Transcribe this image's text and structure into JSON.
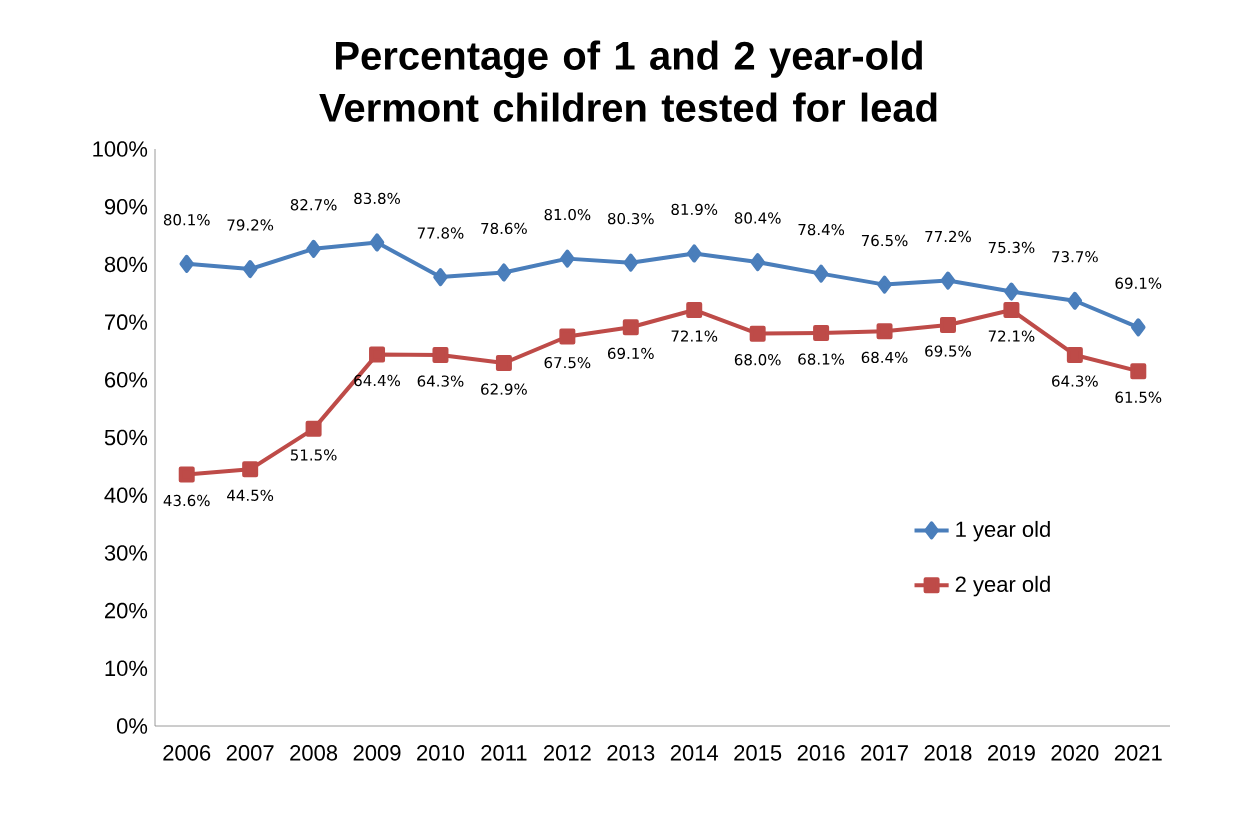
{
  "chart_data": {
    "type": "line",
    "title": "Percentage of 1 and 2 year-old Vermont children tested for lead",
    "categories": [
      "2006",
      "2007",
      "2008",
      "2009",
      "2010",
      "2011",
      "2012",
      "2013",
      "2014",
      "2015",
      "2016",
      "2017",
      "2018",
      "2019",
      "2020",
      "2021"
    ],
    "series": [
      {
        "name": "1 year old",
        "color": "#4a7ebb",
        "marker": "diamond",
        "values": [
          80.1,
          79.2,
          82.7,
          83.8,
          77.8,
          78.6,
          81.0,
          80.3,
          81.9,
          80.4,
          78.4,
          76.5,
          77.2,
          75.3,
          73.7,
          69.1
        ],
        "value_labels": [
          "80.1%",
          "79.2%",
          "82.7%",
          "83.8%",
          "77.8%",
          "78.6%",
          "81.0%",
          "80.3%",
          "81.9%",
          "80.4%",
          "78.4%",
          "76.5%",
          "77.2%",
          "75.3%",
          "73.7%",
          "69.1%"
        ]
      },
      {
        "name": "2 year old",
        "color": "#be4b48",
        "marker": "square",
        "values": [
          43.6,
          44.5,
          51.5,
          64.4,
          64.3,
          62.9,
          67.5,
          69.1,
          72.1,
          68.0,
          68.1,
          68.4,
          69.5,
          72.1,
          64.3,
          61.5
        ],
        "value_labels": [
          "43.6%",
          "44.5%",
          "51.5%",
          "64.4%",
          "64.3%",
          "62.9%",
          "67.5%",
          "69.1%",
          "72.1%",
          "68.0%",
          "68.1%",
          "68.4%",
          "69.5%",
          "72.1%",
          "64.3%",
          "61.5%"
        ]
      }
    ],
    "ylim": [
      0,
      100
    ],
    "yticks": [
      {
        "value": 0,
        "label": "0%"
      },
      {
        "value": 10,
        "label": "10%"
      },
      {
        "value": 20,
        "label": "20%"
      },
      {
        "value": 30,
        "label": "30%"
      },
      {
        "value": 40,
        "label": "40%"
      },
      {
        "value": 50,
        "label": "50%"
      },
      {
        "value": 60,
        "label": "60%"
      },
      {
        "value": 70,
        "label": "70%"
      },
      {
        "value": 80,
        "label": "80%"
      },
      {
        "value": 90,
        "label": "90%"
      },
      {
        "value": 100,
        "label": "100%"
      }
    ],
    "grid": false,
    "legend": "right",
    "line_style": "solid"
  }
}
